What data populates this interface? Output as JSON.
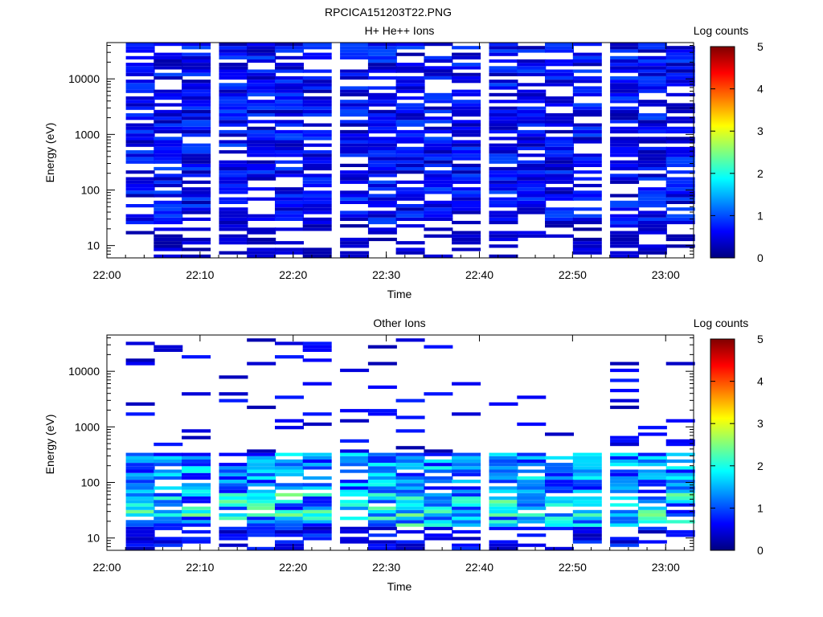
{
  "figure": {
    "title": "RPCICA151203T22.PNG"
  },
  "chart_data": [
    {
      "type": "heatmap",
      "title": "H+ He++ Ions",
      "xlabel": "Time",
      "ylabel": "Energy (eV)",
      "y_scale": "log",
      "ylim": [
        6,
        45000
      ],
      "xlim": [
        "22:00",
        "23:03"
      ],
      "x_ticks": [
        "22:00",
        "22:10",
        "22:20",
        "22:30",
        "22:40",
        "22:50",
        "23:00"
      ],
      "y_ticks": [
        "10",
        "100",
        "1000",
        "10000"
      ],
      "colorbar": {
        "label": "Log counts",
        "range": [
          0,
          5
        ],
        "ticks": [
          "0",
          "1",
          "2",
          "3",
          "4",
          "5"
        ],
        "colormap": [
          "#00007f",
          "#0000ff",
          "#007fff",
          "#00ffff",
          "#7fff7f",
          "#ffff00",
          "#ff7f00",
          "#ff0000",
          "#7f0000"
        ]
      },
      "time_bins_start": [
        "22:01",
        "22:04",
        "22:07",
        "22:11",
        "22:14",
        "22:17",
        "22:20",
        "22:24",
        "22:27",
        "22:30",
        "22:33",
        "22:36",
        "22:40",
        "22:43",
        "22:46",
        "22:49",
        "22:53",
        "22:56",
        "22:59"
      ],
      "energy_range_eV": [
        6,
        45000
      ],
      "values_summary": "Nearly every time bin shows low counts (about 0.2–1 log counts, dark blue to blue) across roughly 20 eV to 40000 eV, with scattered empty bins; below ~30 eV data is sparse."
    },
    {
      "type": "heatmap",
      "title": "Other Ions",
      "xlabel": "Time",
      "ylabel": "Energy (eV)",
      "y_scale": "log",
      "ylim": [
        6,
        45000
      ],
      "xlim": [
        "22:00",
        "23:03"
      ],
      "x_ticks": [
        "22:00",
        "22:10",
        "22:20",
        "22:30",
        "22:40",
        "22:50",
        "23:00"
      ],
      "y_ticks": [
        "10",
        "100",
        "1000",
        "10000"
      ],
      "colorbar": {
        "label": "Log counts",
        "range": [
          0,
          5
        ],
        "ticks": [
          "0",
          "1",
          "2",
          "3",
          "4",
          "5"
        ],
        "colormap": [
          "#00007f",
          "#0000ff",
          "#007fff",
          "#00ffff",
          "#7fff7f",
          "#ffff00",
          "#ff7f00",
          "#ff0000",
          "#7f0000"
        ]
      },
      "time_bins_start": [
        "22:01",
        "22:04",
        "22:07",
        "22:11",
        "22:14",
        "22:17",
        "22:20",
        "22:24",
        "22:27",
        "22:30",
        "22:33",
        "22:36",
        "22:40",
        "22:43",
        "22:46",
        "22:49",
        "22:53",
        "22:56",
        "22:59"
      ],
      "energy_range_eV": [
        6,
        45000
      ],
      "values_summary": "Highest counts (about 1.5–2.3 log counts, cyan to light green) occur between ~15 eV and ~300 eV; sparse single-line counts appear above 1000 eV up to ~35000 eV."
    }
  ]
}
